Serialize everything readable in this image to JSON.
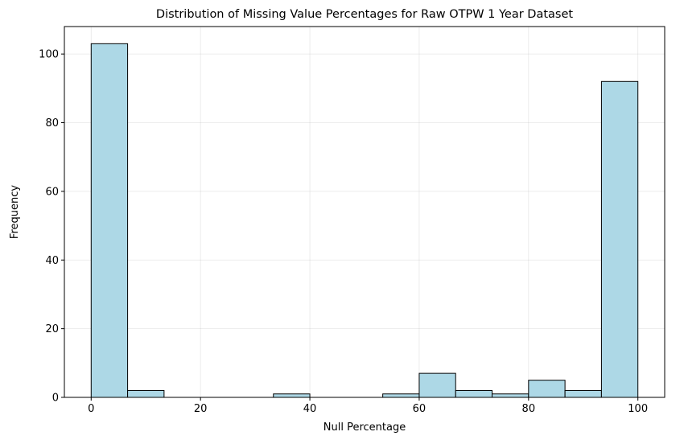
{
  "chart_data": {
    "type": "bar",
    "title": "Distribution of Missing Value Percentages for Raw OTPW 1 Year Dataset",
    "xlabel": "Null Percentage",
    "ylabel": "Frequency",
    "xlim": [
      -4.9,
      104.9
    ],
    "ylim": [
      0,
      108
    ],
    "xticks": [
      0,
      20,
      40,
      60,
      80,
      100
    ],
    "yticks": [
      0,
      20,
      40,
      60,
      80,
      100
    ],
    "grid": true,
    "bar_color": "#add8e6",
    "edge_color": "#000000",
    "bin_edges": [
      0,
      6.667,
      13.333,
      20,
      26.667,
      33.333,
      40,
      46.667,
      53.333,
      60,
      66.667,
      73.333,
      80,
      86.667,
      93.333,
      100
    ],
    "values": [
      103,
      2,
      0,
      0,
      0,
      1,
      0,
      0,
      1,
      7,
      2,
      1,
      5,
      2,
      92
    ]
  }
}
